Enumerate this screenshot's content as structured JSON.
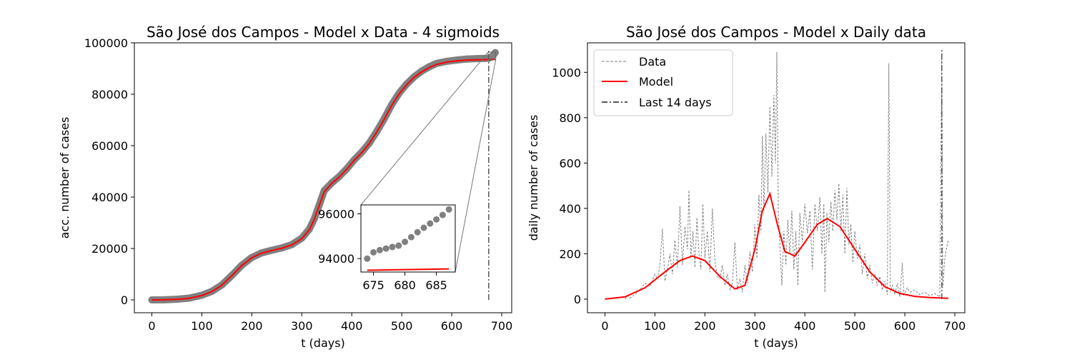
{
  "chart_data": [
    {
      "type": "line",
      "title": "São José dos Campos - Model x Data - 4 sigmoids",
      "xlabel": "t (days)",
      "ylabel": "acc. number of cases",
      "xlim": [
        -35,
        720
      ],
      "ylim": [
        -5000,
        100000
      ],
      "xticks": [
        0,
        100,
        200,
        300,
        400,
        500,
        600,
        700
      ],
      "yticks": [
        0,
        20000,
        40000,
        60000,
        80000,
        100000
      ],
      "colors": {
        "data": "#808080",
        "model": "#ff0000",
        "vline": "#555555"
      },
      "data_points": [
        [
          0,
          0
        ],
        [
          25,
          40
        ],
        [
          50,
          250
        ],
        [
          75,
          700
        ],
        [
          100,
          1800
        ],
        [
          120,
          3300
        ],
        [
          140,
          5800
        ],
        [
          160,
          9500
        ],
        [
          180,
          13500
        ],
        [
          200,
          16500
        ],
        [
          220,
          18300
        ],
        [
          240,
          19300
        ],
        [
          260,
          20200
        ],
        [
          280,
          21500
        ],
        [
          300,
          24000
        ],
        [
          315,
          27500
        ],
        [
          325,
          31500
        ],
        [
          335,
          37000
        ],
        [
          345,
          42500
        ],
        [
          360,
          45500
        ],
        [
          375,
          48000
        ],
        [
          390,
          51000
        ],
        [
          405,
          54500
        ],
        [
          420,
          57500
        ],
        [
          435,
          61000
        ],
        [
          450,
          65500
        ],
        [
          465,
          70500
        ],
        [
          480,
          76000
        ],
        [
          495,
          80500
        ],
        [
          510,
          84000
        ],
        [
          525,
          86800
        ],
        [
          540,
          89000
        ],
        [
          555,
          90700
        ],
        [
          570,
          92000
        ],
        [
          590,
          92800
        ],
        [
          610,
          93300
        ],
        [
          630,
          93700
        ],
        [
          650,
          93850
        ],
        [
          674,
          94000
        ],
        [
          680,
          94500
        ],
        [
          687,
          96200
        ]
      ],
      "model_curve": [
        [
          0,
          0
        ],
        [
          25,
          30
        ],
        [
          50,
          200
        ],
        [
          75,
          600
        ],
        [
          100,
          1700
        ],
        [
          120,
          3200
        ],
        [
          140,
          5700
        ],
        [
          160,
          9400
        ],
        [
          180,
          13400
        ],
        [
          200,
          16400
        ],
        [
          220,
          18200
        ],
        [
          240,
          19200
        ],
        [
          260,
          20100
        ],
        [
          280,
          21400
        ],
        [
          300,
          23800
        ],
        [
          315,
          27300
        ],
        [
          325,
          31300
        ],
        [
          335,
          36800
        ],
        [
          345,
          42000
        ],
        [
          360,
          45300
        ],
        [
          375,
          47800
        ],
        [
          390,
          50800
        ],
        [
          405,
          54300
        ],
        [
          420,
          57300
        ],
        [
          435,
          60800
        ],
        [
          450,
          65300
        ],
        [
          465,
          70300
        ],
        [
          480,
          75700
        ],
        [
          495,
          80200
        ],
        [
          510,
          83700
        ],
        [
          525,
          86600
        ],
        [
          540,
          88700
        ],
        [
          555,
          90400
        ],
        [
          570,
          91600
        ],
        [
          590,
          92500
        ],
        [
          610,
          93000
        ],
        [
          630,
          93300
        ],
        [
          650,
          93400
        ],
        [
          687,
          93550
        ]
      ],
      "last_14_days_line": {
        "x": 674,
        "y_range": [
          0,
          97000
        ]
      },
      "inset": {
        "xlim": [
          673,
          688
        ],
        "ylim": [
          93400,
          96400
        ],
        "xticks": [
          675,
          680,
          685
        ],
        "yticks": [
          94000,
          96000
        ],
        "data_points": [
          [
            674,
            94000
          ],
          [
            675,
            94280
          ],
          [
            676,
            94380
          ],
          [
            677,
            94450
          ],
          [
            678,
            94520
          ],
          [
            679,
            94580
          ],
          [
            680,
            94750
          ],
          [
            681,
            94960
          ],
          [
            682,
            95180
          ],
          [
            683,
            95380
          ],
          [
            684,
            95570
          ],
          [
            685,
            95750
          ],
          [
            686,
            95950
          ],
          [
            687,
            96200
          ]
        ],
        "model_points": [
          [
            674,
            93480
          ],
          [
            687,
            93540
          ]
        ]
      }
    },
    {
      "type": "line",
      "title": "São José dos Campos - Model x Daily data",
      "xlabel": "t (days)",
      "ylabel": "daily number of cases",
      "xlim": [
        -35,
        720
      ],
      "ylim": [
        -60,
        1130
      ],
      "xticks": [
        0,
        100,
        200,
        300,
        400,
        500,
        600,
        700
      ],
      "yticks": [
        0,
        200,
        400,
        600,
        800,
        1000
      ],
      "legend": {
        "position": "top-left",
        "entries": [
          "Data",
          "Model",
          "Last 14 days"
        ]
      },
      "colors": {
        "data": "#808080",
        "model": "#ff0000",
        "vline": "#555555"
      },
      "model_curve": [
        [
          0,
          0
        ],
        [
          40,
          10
        ],
        [
          80,
          50
        ],
        [
          120,
          120
        ],
        [
          150,
          170
        ],
        [
          175,
          190
        ],
        [
          200,
          170
        ],
        [
          230,
          100
        ],
        [
          260,
          45
        ],
        [
          280,
          60
        ],
        [
          300,
          220
        ],
        [
          315,
          390
        ],
        [
          330,
          465
        ],
        [
          345,
          330
        ],
        [
          360,
          210
        ],
        [
          380,
          190
        ],
        [
          400,
          250
        ],
        [
          425,
          330
        ],
        [
          445,
          355
        ],
        [
          470,
          320
        ],
        [
          500,
          220
        ],
        [
          530,
          120
        ],
        [
          560,
          55
        ],
        [
          590,
          25
        ],
        [
          620,
          12
        ],
        [
          650,
          7
        ],
        [
          687,
          4
        ]
      ],
      "daily_data": [
        [
          40,
          0
        ],
        [
          45,
          15
        ],
        [
          50,
          5
        ],
        [
          60,
          20
        ],
        [
          70,
          40
        ],
        [
          80,
          70
        ],
        [
          90,
          55
        ],
        [
          100,
          110
        ],
        [
          105,
          90
        ],
        [
          110,
          150
        ],
        [
          115,
          310
        ],
        [
          120,
          80
        ],
        [
          125,
          130
        ],
        [
          130,
          200
        ],
        [
          135,
          110
        ],
        [
          140,
          260
        ],
        [
          145,
          140
        ],
        [
          150,
          410
        ],
        [
          155,
          150
        ],
        [
          160,
          320
        ],
        [
          165,
          220
        ],
        [
          168,
          480
        ],
        [
          172,
          180
        ],
        [
          176,
          300
        ],
        [
          180,
          140
        ],
        [
          184,
          360
        ],
        [
          188,
          200
        ],
        [
          192,
          130
        ],
        [
          196,
          420
        ],
        [
          200,
          180
        ],
        [
          205,
          300
        ],
        [
          210,
          120
        ],
        [
          215,
          400
        ],
        [
          220,
          170
        ],
        [
          225,
          100
        ],
        [
          230,
          90
        ],
        [
          235,
          150
        ],
        [
          240,
          60
        ],
        [
          245,
          110
        ],
        [
          250,
          40
        ],
        [
          255,
          70
        ],
        [
          260,
          250
        ],
        [
          265,
          40
        ],
        [
          270,
          90
        ],
        [
          275,
          30
        ],
        [
          280,
          150
        ],
        [
          285,
          70
        ],
        [
          290,
          210
        ],
        [
          295,
          120
        ],
        [
          300,
          330
        ],
        [
          304,
          180
        ],
        [
          308,
          460
        ],
        [
          312,
          300
        ],
        [
          315,
          720
        ],
        [
          318,
          390
        ],
        [
          322,
          730
        ],
        [
          326,
          470
        ],
        [
          330,
          850
        ],
        [
          334,
          540
        ],
        [
          338,
          900
        ],
        [
          341,
          600
        ],
        [
          344,
          1090
        ],
        [
          347,
          380
        ],
        [
          350,
          250
        ],
        [
          354,
          60
        ],
        [
          358,
          300
        ],
        [
          362,
          150
        ],
        [
          366,
          350
        ],
        [
          370,
          200
        ],
        [
          374,
          390
        ],
        [
          378,
          130
        ],
        [
          382,
          300
        ],
        [
          386,
          60
        ],
        [
          390,
          380
        ],
        [
          395,
          250
        ],
        [
          400,
          420
        ],
        [
          405,
          290
        ],
        [
          410,
          390
        ],
        [
          415,
          130
        ],
        [
          420,
          420
        ],
        [
          425,
          300
        ],
        [
          430,
          450
        ],
        [
          434,
          200
        ],
        [
          438,
          420
        ],
        [
          440,
          30
        ],
        [
          444,
          380
        ],
        [
          448,
          250
        ],
        [
          452,
          430
        ],
        [
          456,
          300
        ],
        [
          460,
          480
        ],
        [
          464,
          350
        ],
        [
          468,
          510
        ],
        [
          472,
          300
        ],
        [
          476,
          460
        ],
        [
          480,
          200
        ],
        [
          484,
          490
        ],
        [
          488,
          240
        ],
        [
          492,
          330
        ],
        [
          496,
          160
        ],
        [
          500,
          300
        ],
        [
          505,
          180
        ],
        [
          510,
          240
        ],
        [
          515,
          110
        ],
        [
          520,
          200
        ],
        [
          525,
          90
        ],
        [
          530,
          150
        ],
        [
          535,
          70
        ],
        [
          540,
          110
        ],
        [
          545,
          60
        ],
        [
          550,
          100
        ],
        [
          555,
          40
        ],
        [
          560,
          80
        ],
        [
          565,
          20
        ],
        [
          568,
          1040
        ],
        [
          571,
          30
        ],
        [
          575,
          60
        ],
        [
          580,
          20
        ],
        [
          585,
          70
        ],
        [
          590,
          10
        ],
        [
          595,
          160
        ],
        [
          598,
          20
        ],
        [
          605,
          50
        ],
        [
          610,
          30
        ],
        [
          620,
          40
        ],
        [
          630,
          20
        ],
        [
          640,
          30
        ],
        [
          650,
          15
        ],
        [
          660,
          25
        ],
        [
          670,
          10
        ],
        [
          674,
          1080
        ],
        [
          676,
          50
        ],
        [
          680,
          180
        ],
        [
          684,
          230
        ],
        [
          687,
          260
        ]
      ],
      "last_14_days_line": {
        "x": 674,
        "y_range": [
          0,
          1100
        ]
      }
    }
  ]
}
